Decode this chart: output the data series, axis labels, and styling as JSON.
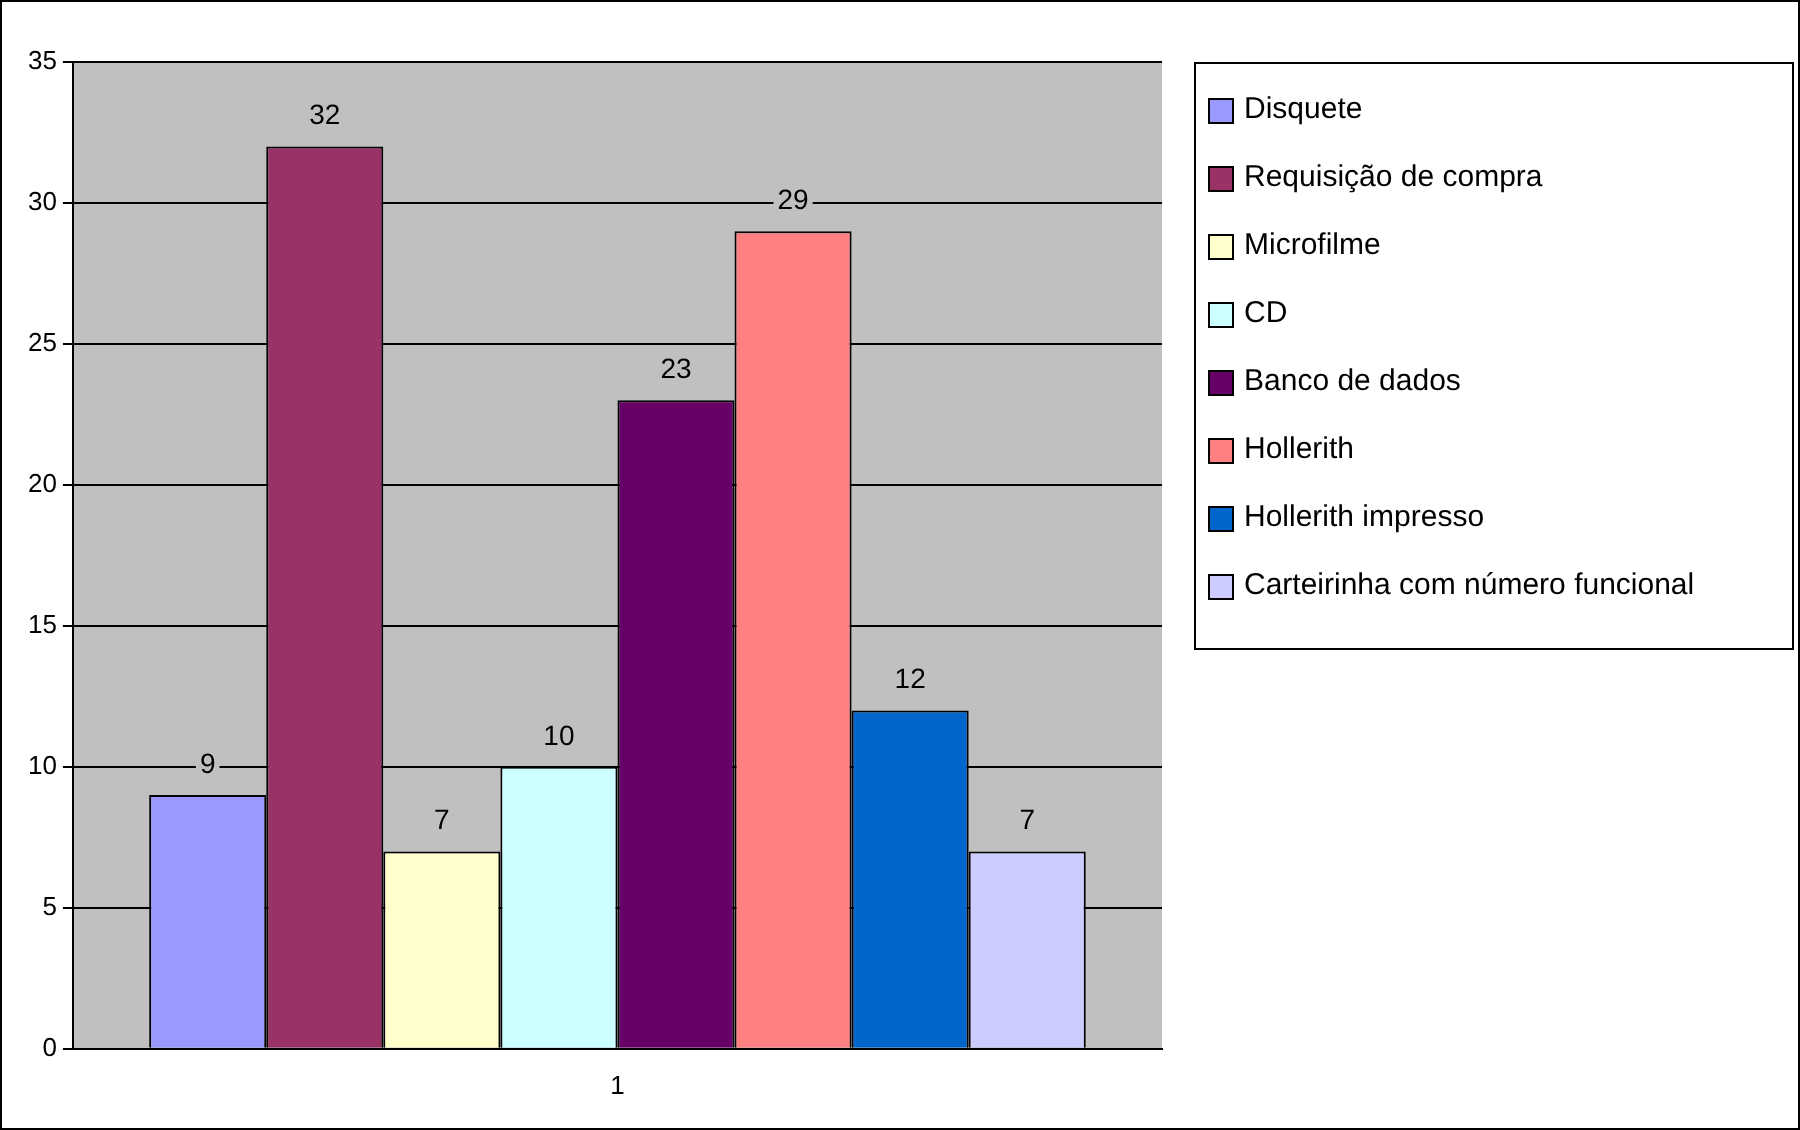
{
  "chart_data": {
    "type": "bar",
    "categories": [
      "1"
    ],
    "series": [
      {
        "name": "Disquete",
        "color": "#9999ff",
        "values": [
          9
        ]
      },
      {
        "name": "Requisição de compra",
        "color": "#993366",
        "values": [
          32
        ]
      },
      {
        "name": "Microfilme",
        "color": "#ffffcc",
        "values": [
          7
        ]
      },
      {
        "name": "CD",
        "color": "#ccffff",
        "values": [
          10
        ]
      },
      {
        "name": "Banco de dados",
        "color": "#660066",
        "values": [
          23
        ]
      },
      {
        "name": "Hollerith",
        "color": "#ff8080",
        "values": [
          29
        ]
      },
      {
        "name": "Hollerith impresso",
        "color": "#0066cc",
        "values": [
          12
        ]
      },
      {
        "name": "Carteirinha com número funcional",
        "color": "#ccccff",
        "values": [
          7
        ]
      }
    ],
    "ylim": [
      0,
      35
    ],
    "yticks": [
      0,
      5,
      10,
      15,
      20,
      25,
      30,
      35
    ],
    "grid": "y",
    "legend": "right",
    "data_labels": true
  }
}
